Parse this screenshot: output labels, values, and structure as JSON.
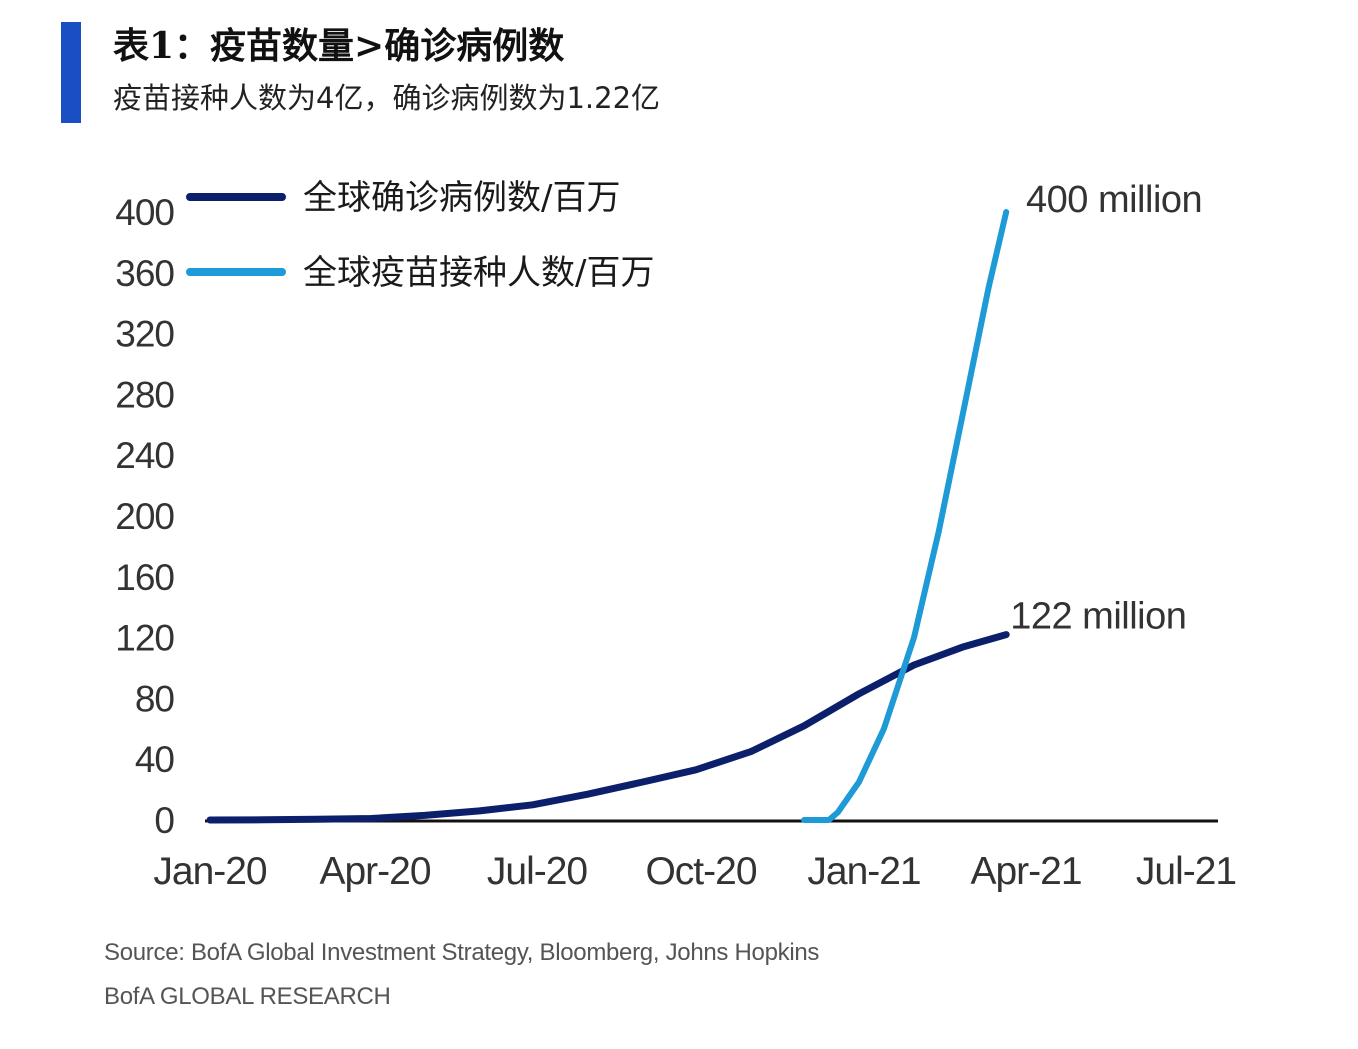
{
  "header": {
    "title": "表1：疫苗数量>确诊病例数",
    "subtitle": "疫苗接种人数为4亿，确诊病例数为1.22亿"
  },
  "chart_data": {
    "type": "line",
    "title": "",
    "xlabel": "",
    "ylabel": "",
    "x_ticks": [
      "Jan-20",
      "Apr-20",
      "Jul-20",
      "Oct-20",
      "Jan-21",
      "Apr-21",
      "Jul-21"
    ],
    "y_ticks": [
      0,
      40,
      80,
      120,
      160,
      200,
      240,
      280,
      320,
      360,
      400
    ],
    "xlim": [
      "2020-01-01",
      "2021-07-01"
    ],
    "ylim": [
      0,
      400
    ],
    "grid": false,
    "legend_position": "top-left",
    "series": [
      {
        "name": "全球确诊病例数/百万",
        "color": "#0b1f6b",
        "end_label": "122 million",
        "points": [
          [
            "2020-01-01",
            0
          ],
          [
            "2020-02-01",
            0.1
          ],
          [
            "2020-03-01",
            0.5
          ],
          [
            "2020-04-01",
            1
          ],
          [
            "2020-05-01",
            3
          ],
          [
            "2020-06-01",
            6
          ],
          [
            "2020-07-01",
            10
          ],
          [
            "2020-08-01",
            17
          ],
          [
            "2020-09-01",
            25
          ],
          [
            "2020-10-01",
            33
          ],
          [
            "2020-11-01",
            45
          ],
          [
            "2020-12-01",
            62
          ],
          [
            "2021-01-01",
            83
          ],
          [
            "2021-02-01",
            102
          ],
          [
            "2021-03-01",
            114
          ],
          [
            "2021-03-25",
            122
          ]
        ]
      },
      {
        "name": "全球疫苗接种人数/百万",
        "color": "#1e9ad6",
        "end_label": "400 million",
        "points": [
          [
            "2020-12-01",
            0
          ],
          [
            "2020-12-15",
            0
          ],
          [
            "2020-12-20",
            5
          ],
          [
            "2021-01-01",
            25
          ],
          [
            "2021-01-15",
            60
          ],
          [
            "2021-02-01",
            120
          ],
          [
            "2021-02-15",
            190
          ],
          [
            "2021-03-01",
            270
          ],
          [
            "2021-03-15",
            350
          ],
          [
            "2021-03-25",
            400
          ]
        ]
      }
    ]
  },
  "footer": {
    "source": "Source:  BofA Global Investment Strategy, Bloomberg, Johns  Hopkins",
    "brand": "BofA GLOBAL RESEARCH"
  }
}
